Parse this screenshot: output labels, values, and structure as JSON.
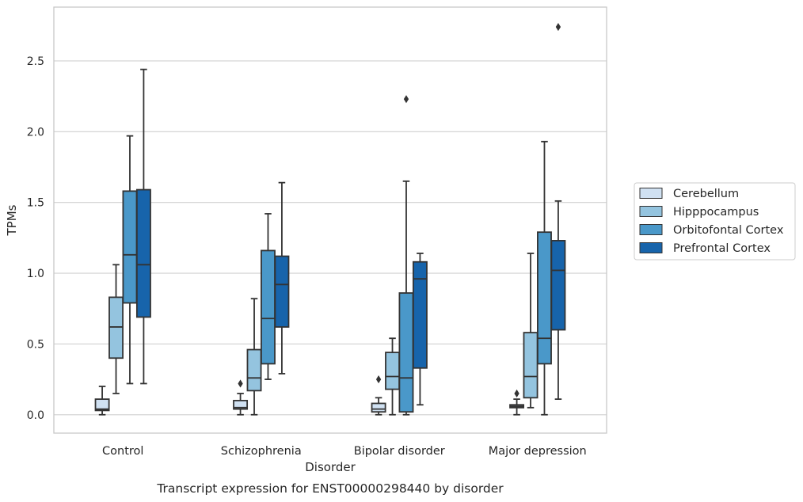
{
  "caption": "Transcript expression for ENST00000298440 by disorder",
  "colors": {
    "Cerebellum": "#d0e1f2",
    "Hipppocampus": "#94c4df",
    "Orbitofontal Cortex": "#4a98c9",
    "Prefrontal Cortex": "#1764ab",
    "grid": "#d0d0d0",
    "frame": "#c8c8c8",
    "line": "#333333"
  },
  "chart_data": {
    "type": "boxplot",
    "xlabel": "Disorder",
    "ylabel": "TPMs",
    "ylim": [
      -0.13,
      2.88
    ],
    "yticks": [
      "0.0",
      "0.5",
      "1.0",
      "1.5",
      "2.0",
      "2.5"
    ],
    "grid": true,
    "legend_position": "right",
    "categories": [
      "Control",
      "Schizophrenia",
      "Bipolar disorder",
      "Major depression"
    ],
    "series": [
      {
        "name": "Cerebellum",
        "boxes": [
          {
            "whislo": 0.0,
            "q1": 0.03,
            "med": 0.04,
            "q3": 0.11,
            "whishi": 0.2,
            "fliers": []
          },
          {
            "whislo": 0.0,
            "q1": 0.04,
            "med": 0.05,
            "q3": 0.1,
            "whishi": 0.15,
            "fliers": [
              0.22
            ]
          },
          {
            "whislo": 0.0,
            "q1": 0.02,
            "med": 0.04,
            "q3": 0.08,
            "whishi": 0.12,
            "fliers": [
              0.25
            ]
          },
          {
            "whislo": 0.0,
            "q1": 0.05,
            "med": 0.06,
            "q3": 0.07,
            "whishi": 0.11,
            "fliers": [
              0.15
            ]
          }
        ]
      },
      {
        "name": "Hipppocampus",
        "boxes": [
          {
            "whislo": 0.15,
            "q1": 0.4,
            "med": 0.62,
            "q3": 0.83,
            "whishi": 1.06,
            "fliers": []
          },
          {
            "whislo": 0.0,
            "q1": 0.17,
            "med": 0.26,
            "q3": 0.46,
            "whishi": 0.82,
            "fliers": []
          },
          {
            "whislo": 0.0,
            "q1": 0.18,
            "med": 0.27,
            "q3": 0.44,
            "whishi": 0.54,
            "fliers": []
          },
          {
            "whislo": 0.05,
            "q1": 0.12,
            "med": 0.27,
            "q3": 0.58,
            "whishi": 1.14,
            "fliers": []
          }
        ]
      },
      {
        "name": "Orbitofontal Cortex",
        "boxes": [
          {
            "whislo": 0.22,
            "q1": 0.79,
            "med": 1.13,
            "q3": 1.58,
            "whishi": 1.97,
            "fliers": []
          },
          {
            "whislo": 0.25,
            "q1": 0.36,
            "med": 0.68,
            "q3": 1.16,
            "whishi": 1.42,
            "fliers": []
          },
          {
            "whislo": 0.0,
            "q1": 0.02,
            "med": 0.26,
            "q3": 0.86,
            "whishi": 1.65,
            "fliers": [
              2.23
            ]
          },
          {
            "whislo": 0.0,
            "q1": 0.36,
            "med": 0.54,
            "q3": 1.29,
            "whishi": 1.93,
            "fliers": []
          }
        ]
      },
      {
        "name": "Prefrontal Cortex",
        "boxes": [
          {
            "whislo": 0.22,
            "q1": 0.69,
            "med": 1.06,
            "q3": 1.59,
            "whishi": 2.44,
            "fliers": []
          },
          {
            "whislo": 0.29,
            "q1": 0.62,
            "med": 0.92,
            "q3": 1.12,
            "whishi": 1.64,
            "fliers": []
          },
          {
            "whislo": 0.07,
            "q1": 0.33,
            "med": 0.96,
            "q3": 1.08,
            "whishi": 1.14,
            "fliers": []
          },
          {
            "whislo": 0.11,
            "q1": 0.6,
            "med": 1.02,
            "q3": 1.23,
            "whishi": 1.51,
            "fliers": [
              2.74
            ]
          }
        ]
      }
    ]
  }
}
